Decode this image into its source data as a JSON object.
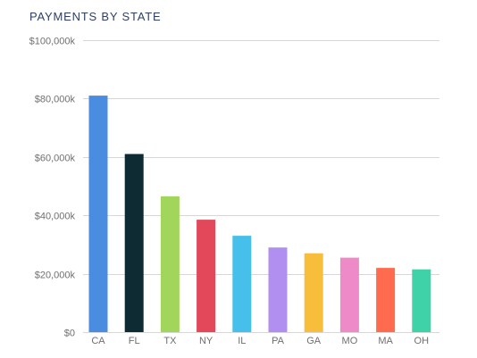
{
  "chart_data": {
    "type": "bar",
    "title": "PAYMENTS BY STATE",
    "xlabel": "",
    "ylabel": "",
    "categories": [
      "CA",
      "FL",
      "TX",
      "NY",
      "IL",
      "PA",
      "GA",
      "MO",
      "MA",
      "OH"
    ],
    "values": [
      81000,
      61000,
      46500,
      38500,
      33000,
      29000,
      27000,
      25500,
      22000,
      21500
    ],
    "ylim": [
      0,
      100000
    ],
    "yticks": [
      0,
      20000,
      40000,
      60000,
      80000,
      100000
    ],
    "ytick_labels": [
      "$0",
      "$20,000k",
      "$40,000k",
      "$60,000k",
      "$80,000k",
      "$100,000k"
    ],
    "grid": true,
    "bar_colors": [
      "#4a8ce0",
      "#0e2a33",
      "#a2d55b",
      "#e2475a",
      "#47bfeb",
      "#b18ff0",
      "#f6be3a",
      "#ef8ac8",
      "#ff6b4f",
      "#3fd2a8"
    ],
    "gridline_color": "#d7d7d7",
    "title_color": "#2f3f63"
  }
}
